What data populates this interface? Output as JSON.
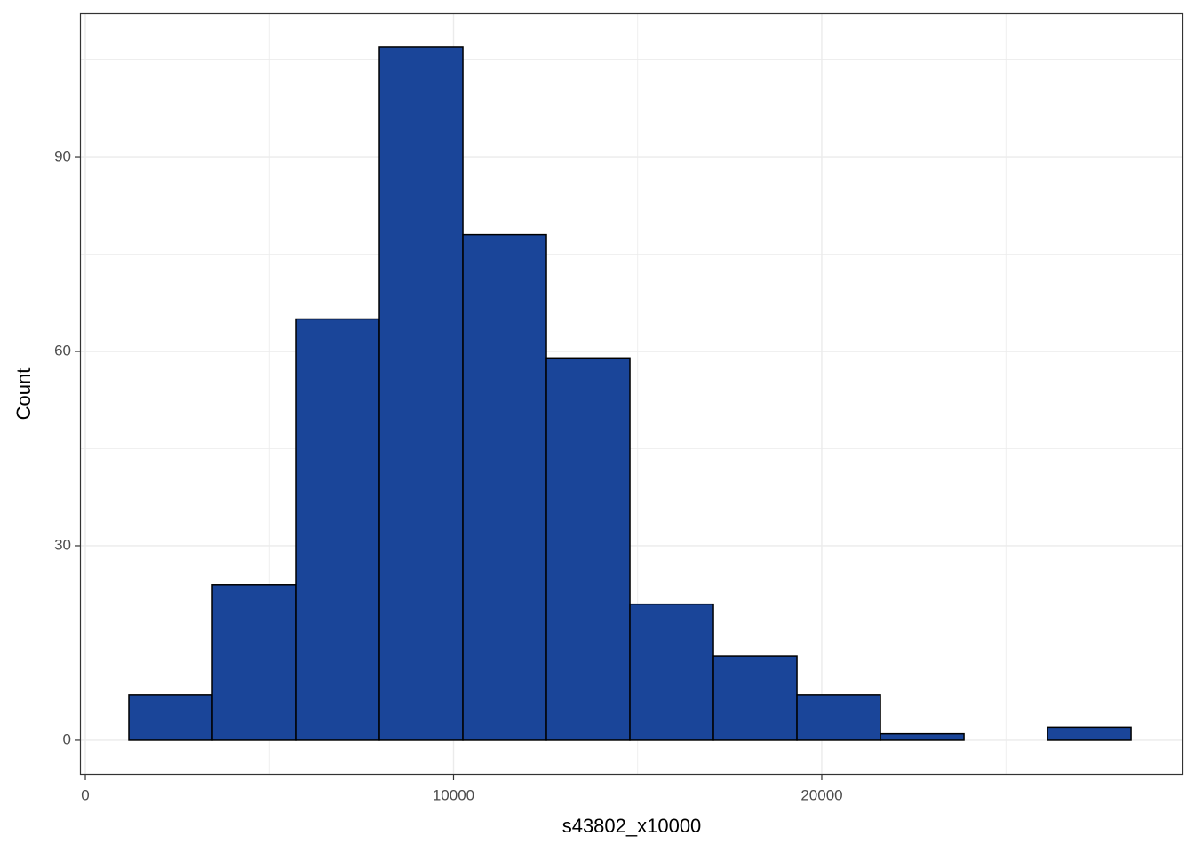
{
  "chart_data": {
    "type": "histogram",
    "x_label": "s43802_x10000",
    "y_label": "Count",
    "bins": [
      1182,
      3450,
      5718,
      7986,
      10254,
      12522,
      14790,
      17058,
      19326,
      21594,
      23862,
      26130,
      28398
    ],
    "values": [
      7,
      24,
      65,
      107,
      78,
      59,
      21,
      13,
      7,
      1,
      0,
      2
    ],
    "color": "#1a4599",
    "edge_color": "#000000",
    "xlim": [
      -145,
      29820
    ],
    "ylim": [
      -5.35,
      112.2
    ],
    "xticks": [
      0,
      10000,
      20000
    ],
    "yticks": [
      0,
      30,
      60,
      90
    ],
    "x_minor_grid": [
      5000,
      15000,
      25000
    ],
    "y_minor_grid": [
      15,
      45,
      75,
      105
    ],
    "grid": true
  }
}
